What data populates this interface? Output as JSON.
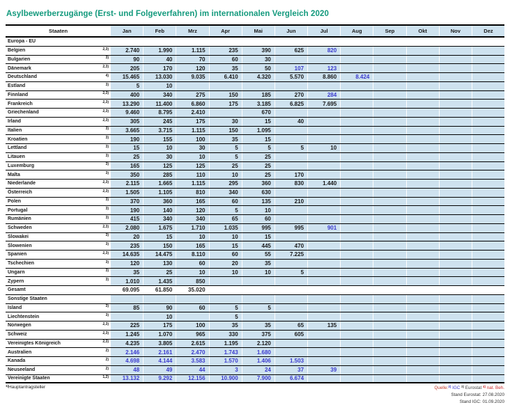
{
  "title": "Asylbewerberzugänge (Erst- und Folgeverfahren) im internationalen Vergleich 2020",
  "colors": {
    "title_green": "#12997c",
    "cell_blue": "#cee2ef",
    "value_blue": "#3b3bce",
    "footer_red": "#c0392b",
    "ink": "#1a1a1a"
  },
  "table": {
    "state_header": "Staaten",
    "months": [
      "Jan",
      "Feb",
      "Mrz",
      "Apr",
      "Mai",
      "Jun",
      "Jul",
      "Aug",
      "Sep",
      "Okt",
      "Nov",
      "Dez"
    ],
    "rows": [
      {
        "type": "section",
        "name": "Europa - EU",
        "cells": "white"
      },
      {
        "type": "data",
        "name": "Belgien",
        "sup": "2,3)",
        "values": [
          "2.740",
          "1.990",
          "1.115",
          "235",
          "390",
          "625",
          "820",
          "",
          "",
          "",
          "",
          ""
        ],
        "blue": [
          6
        ]
      },
      {
        "type": "data",
        "name": "Bulgarien",
        "sup": "3)",
        "values": [
          "90",
          "40",
          "70",
          "60",
          "30",
          "",
          "",
          "",
          "",
          "",
          "",
          ""
        ],
        "blue": []
      },
      {
        "type": "data",
        "name": "Dänemark",
        "sup": "2,3)",
        "values": [
          "205",
          "170",
          "120",
          "35",
          "50",
          "107",
          "123",
          "",
          "",
          "",
          "",
          ""
        ],
        "blue": [
          5,
          6
        ]
      },
      {
        "type": "data",
        "name": "Deutschland",
        "sup": "4)",
        "values": [
          "15.465",
          "13.030",
          "9.035",
          "6.410",
          "4.320",
          "5.570",
          "8.860",
          "8.424",
          "",
          "",
          "",
          ""
        ],
        "blue": [
          7
        ]
      },
      {
        "type": "data",
        "name": "Estland",
        "sup": "3)",
        "values": [
          "5",
          "10",
          "",
          "",
          "",
          "",
          "",
          "",
          "",
          "",
          "",
          ""
        ],
        "blue": []
      },
      {
        "type": "data",
        "name": "Finnland",
        "sup": "2,3)",
        "values": [
          "400",
          "340",
          "275",
          "150",
          "185",
          "270",
          "284",
          "",
          "",
          "",
          "",
          ""
        ],
        "blue": [
          6
        ]
      },
      {
        "type": "data",
        "name": "Frankreich",
        "sup": "2,3)",
        "values": [
          "13.290",
          "11.400",
          "6.860",
          "175",
          "3.185",
          "6.825",
          "7.695",
          "",
          "",
          "",
          "",
          ""
        ],
        "blue": []
      },
      {
        "type": "data",
        "name": "Griechenland",
        "sup": "2,3)",
        "values": [
          "9.460",
          "8.795",
          "2.410",
          "",
          "670",
          "",
          "",
          "",
          "",
          "",
          "",
          ""
        ],
        "blue": []
      },
      {
        "type": "data",
        "name": "Irland",
        "sup": "2,3)",
        "values": [
          "305",
          "245",
          "175",
          "30",
          "15",
          "40",
          "",
          "",
          "",
          "",
          "",
          ""
        ],
        "blue": []
      },
      {
        "type": "data",
        "name": "Italien",
        "sup": "3)",
        "values": [
          "3.665",
          "3.715",
          "1.115",
          "150",
          "1.095",
          "",
          "",
          "",
          "",
          "",
          "",
          ""
        ],
        "blue": []
      },
      {
        "type": "data",
        "name": "Kroatien",
        "sup": "3)",
        "values": [
          "190",
          "155",
          "100",
          "35",
          "15",
          "",
          "",
          "",
          "",
          "",
          "",
          ""
        ],
        "blue": []
      },
      {
        "type": "data",
        "name": "Lettland",
        "sup": "3)",
        "values": [
          "15",
          "10",
          "30",
          "5",
          "5",
          "5",
          "10",
          "",
          "",
          "",
          "",
          ""
        ],
        "blue": []
      },
      {
        "type": "data",
        "name": "Litauen",
        "sup": "3)",
        "values": [
          "25",
          "30",
          "10",
          "5",
          "25",
          "",
          "",
          "",
          "",
          "",
          "",
          ""
        ],
        "blue": []
      },
      {
        "type": "data",
        "name": "Luxemburg",
        "sup": "3)",
        "values": [
          "165",
          "125",
          "125",
          "25",
          "25",
          "",
          "",
          "",
          "",
          "",
          "",
          ""
        ],
        "blue": []
      },
      {
        "type": "data",
        "name": "Malta",
        "sup": "3)",
        "values": [
          "350",
          "285",
          "110",
          "10",
          "25",
          "170",
          "",
          "",
          "",
          "",
          "",
          ""
        ],
        "blue": []
      },
      {
        "type": "data",
        "name": "Niederlande",
        "sup": "2,3)",
        "values": [
          "2.115",
          "1.665",
          "1.115",
          "295",
          "360",
          "830",
          "1.440",
          "",
          "",
          "",
          "",
          ""
        ],
        "blue": []
      },
      {
        "type": "data",
        "name": "Österreich",
        "sup": "2,3)",
        "values": [
          "1.505",
          "1.105",
          "810",
          "340",
          "630",
          "",
          "",
          "",
          "",
          "",
          "",
          ""
        ],
        "blue": []
      },
      {
        "type": "data",
        "name": "Polen",
        "sup": "3)",
        "values": [
          "370",
          "360",
          "165",
          "60",
          "135",
          "210",
          "",
          "",
          "",
          "",
          "",
          ""
        ],
        "blue": []
      },
      {
        "type": "data",
        "name": "Portugal",
        "sup": "3)",
        "values": [
          "190",
          "140",
          "120",
          "5",
          "10",
          "",
          "",
          "",
          "",
          "",
          "",
          ""
        ],
        "blue": []
      },
      {
        "type": "data",
        "name": "Rumänien",
        "sup": "3)",
        "values": [
          "415",
          "340",
          "340",
          "65",
          "60",
          "",
          "",
          "",
          "",
          "",
          "",
          ""
        ],
        "blue": []
      },
      {
        "type": "data",
        "name": "Schweden",
        "sup": "2,3)",
        "values": [
          "2.080",
          "1.675",
          "1.710",
          "1.035",
          "995",
          "995",
          "901",
          "",
          "",
          "",
          "",
          ""
        ],
        "blue": [
          6
        ]
      },
      {
        "type": "data",
        "name": "Slowakei",
        "sup": "3)",
        "values": [
          "20",
          "15",
          "10",
          "10",
          "15",
          "",
          "",
          "",
          "",
          "",
          "",
          ""
        ],
        "blue": []
      },
      {
        "type": "data",
        "name": "Slowenien",
        "sup": "3)",
        "values": [
          "235",
          "150",
          "165",
          "15",
          "445",
          "470",
          "",
          "",
          "",
          "",
          "",
          ""
        ],
        "blue": []
      },
      {
        "type": "data",
        "name": "Spanien",
        "sup": "2,3)",
        "values": [
          "14.635",
          "14.475",
          "8.110",
          "60",
          "55",
          "7.225",
          "",
          "",
          "",
          "",
          "",
          ""
        ],
        "blue": []
      },
      {
        "type": "data",
        "name": "Tschechien",
        "sup": "3)",
        "values": [
          "120",
          "130",
          "60",
          "20",
          "35",
          "",
          "",
          "",
          "",
          "",
          "",
          ""
        ],
        "blue": []
      },
      {
        "type": "data",
        "name": "Ungarn",
        "sup": "3)",
        "values": [
          "35",
          "25",
          "10",
          "10",
          "10",
          "5",
          "",
          "",
          "",
          "",
          "",
          ""
        ],
        "blue": []
      },
      {
        "type": "data",
        "name": "Zypern",
        "sup": "3)",
        "values": [
          "1.010",
          "1.435",
          "850",
          "",
          "",
          "",
          "",
          "",
          "",
          "",
          "",
          ""
        ],
        "blue": []
      },
      {
        "type": "total",
        "name": "Gesamt",
        "sup": "",
        "values": [
          "69.095",
          "61.850",
          "35.020",
          "",
          "",
          "",
          "",
          "",
          "",
          "",
          "",
          ""
        ],
        "blue": []
      },
      {
        "type": "section",
        "name": "Sonstige Staaten",
        "cells": "blue"
      },
      {
        "type": "data",
        "name": "Island",
        "sup": "3)",
        "values": [
          "85",
          "90",
          "60",
          "5",
          "5",
          "",
          "",
          "",
          "",
          "",
          "",
          ""
        ],
        "blue": []
      },
      {
        "type": "data",
        "name": "Liechtenstein",
        "sup": "3)",
        "values": [
          "",
          "10",
          "",
          "5",
          "",
          "",
          "",
          "",
          "",
          "",
          "",
          ""
        ],
        "blue": []
      },
      {
        "type": "data",
        "name": "Norwegen",
        "sup": "2,3)",
        "values": [
          "225",
          "175",
          "100",
          "35",
          "35",
          "65",
          "135",
          "",
          "",
          "",
          "",
          ""
        ],
        "blue": []
      },
      {
        "type": "data",
        "name": "Schweiz",
        "sup": "2,3)",
        "values": [
          "1.245",
          "1.070",
          "965",
          "330",
          "375",
          "605",
          "",
          "",
          "",
          "",
          "",
          ""
        ],
        "blue": []
      },
      {
        "type": "data",
        "name": "Vereinigtes Königreich",
        "sup": "2,3)",
        "values": [
          "4.235",
          "3.805",
          "2.615",
          "1.195",
          "2.120",
          "",
          "",
          "",
          "",
          "",
          "",
          ""
        ],
        "blue": []
      },
      {
        "type": "data",
        "name": "Australien",
        "sup": "2)",
        "values": [
          "2.146",
          "2.161",
          "2.470",
          "1.743",
          "1.680",
          "",
          "",
          "",
          "",
          "",
          "",
          ""
        ],
        "blue": "all"
      },
      {
        "type": "data",
        "name": "Kanada",
        "sup": "2)",
        "values": [
          "4.698",
          "4.144",
          "3.583",
          "1.570",
          "1.406",
          "1.503",
          "",
          "",
          "",
          "",
          "",
          ""
        ],
        "blue": "all"
      },
      {
        "type": "data",
        "name": "Neuseeland",
        "sup": "2)",
        "values": [
          "48",
          "49",
          "44",
          "3",
          "24",
          "37",
          "39",
          "",
          "",
          "",
          "",
          ""
        ],
        "blue": "all"
      },
      {
        "type": "data",
        "name": "Vereinigte Staaten",
        "sup": "1,2)",
        "values": [
          "13.132",
          "9.292",
          "12.156",
          "10.900",
          "7.900",
          "6.674",
          "",
          "",
          "",
          "",
          "",
          ""
        ],
        "blue": "all",
        "last": true
      }
    ]
  },
  "footnotes": {
    "left": {
      "sup": "1)",
      "text": "Hauptantragsteller"
    },
    "source_segments": [
      {
        "sup": "",
        "text": "Quelle:",
        "color": "#c0392b"
      },
      {
        "sup": "2)",
        "text": " IGC ",
        "color": "#3b3bce"
      },
      {
        "sup": "3)",
        "text": " Eurostat ",
        "color": "#444444"
      },
      {
        "sup": "4)",
        "text": " nat. Beh.",
        "color": "#cc2a2a"
      }
    ],
    "stand_eurostat": "Stand Eurostat: 27.08.2020",
    "stand_igc": "Stand IGC: 01.09.2020"
  }
}
